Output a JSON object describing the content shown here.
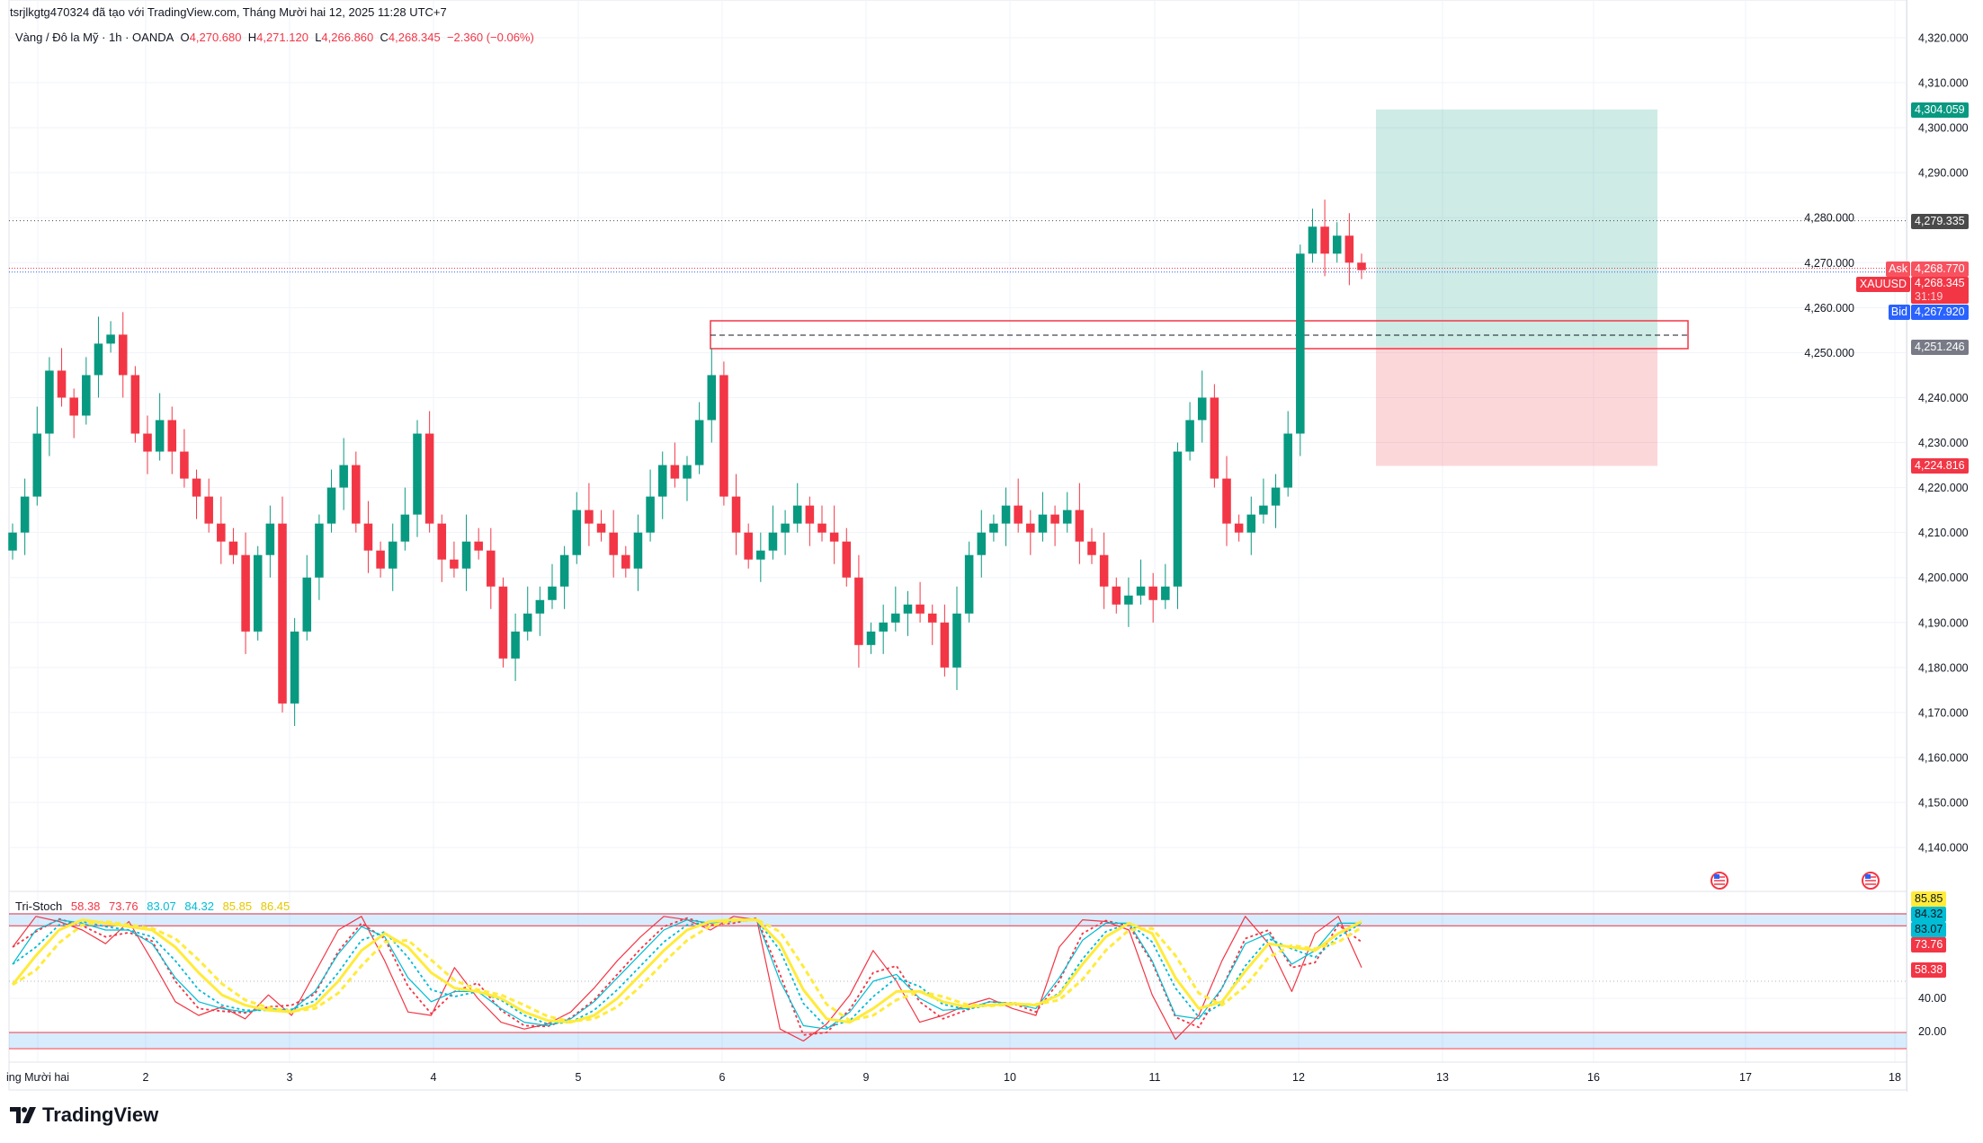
{
  "header": {
    "attribution": "tsrjlkgtg470324 đã tạo với TradingView.com, Tháng Mười hai 12, 2025 11:28 UTC+7",
    "symbol_desc": "Vàng / Đô la Mỹ · 1h · OANDA",
    "o_label": "O",
    "o": "4,270.680",
    "h_label": "H",
    "h": "4,271.120",
    "l_label": "L",
    "l": "4,266.860",
    "c_label": "C",
    "c": "4,268.345",
    "change": "−2.360 (−0.06%)"
  },
  "colors": {
    "up": "#089981",
    "down": "#f23645",
    "bid": "#2962ff",
    "grid": "#f0f3fa",
    "stoch_fast": "#f23645",
    "stoch_mid": "#00bcd4",
    "stoch_slow": "#ffeb3b"
  },
  "price_axis": [
    "4,320.000",
    "4,310.000",
    "4,300.000",
    "4,290.000",
    "4,280.000",
    "4,270.000",
    "4,260.000",
    "4,250.000",
    "4,240.000",
    "4,230.000",
    "4,220.000",
    "4,210.000",
    "4,200.000",
    "4,190.000",
    "4,180.000",
    "4,170.000",
    "4,160.000",
    "4,150.000",
    "4,140.000"
  ],
  "price_tags": {
    "target": "4,304.059",
    "line": "4,279.335",
    "ask_label": "Ask",
    "ask": "4,268.770",
    "symbol": "XAUUSD",
    "last": "4,268.345",
    "countdown": "31:19",
    "bid_label": "Bid",
    "bid": "4,267.920",
    "entry": "4,251.246",
    "stop": "4,224.816"
  },
  "time_axis": [
    "ing Mười hai",
    "2",
    "3",
    "4",
    "5",
    "6",
    "9",
    "10",
    "11",
    "12",
    "13",
    "16",
    "17",
    "18"
  ],
  "stoch": {
    "name": "Tri-Stoch",
    "values": [
      "58.38",
      "73.76",
      "83.07",
      "84.32",
      "85.85",
      "86.45"
    ],
    "axis": [
      "40.00",
      "20.00"
    ],
    "tags": [
      "85.85",
      "84.32",
      "83.07",
      "73.76",
      "58.38"
    ]
  },
  "brand": "TradingView",
  "chart_data": {
    "type": "candlestick",
    "symbol": "XAUUSD",
    "timeframe": "1h",
    "ylim": [
      4140,
      4320
    ],
    "closes": [
      4210,
      4218,
      4232,
      4246,
      4240,
      4236,
      4245,
      4252,
      4254,
      4245,
      4232,
      4228,
      4235,
      4228,
      4222,
      4218,
      4212,
      4208,
      4205,
      4188,
      4205,
      4212,
      4172,
      4188,
      4200,
      4212,
      4220,
      4225,
      4212,
      4206,
      4202,
      4208,
      4214,
      4232,
      4212,
      4204,
      4202,
      4208,
      4206,
      4198,
      4182,
      4188,
      4192,
      4195,
      4198,
      4205,
      4215,
      4212,
      4210,
      4205,
      4202,
      4210,
      4218,
      4225,
      4222,
      4225,
      4235,
      4245,
      4218,
      4210,
      4204,
      4206,
      4210,
      4212,
      4216,
      4212,
      4210,
      4208,
      4200,
      4185,
      4188,
      4190,
      4192,
      4194,
      4192,
      4190,
      4180,
      4192,
      4205,
      4210,
      4212,
      4216,
      4212,
      4210,
      4214,
      4212,
      4215,
      4208,
      4205,
      4198,
      4194,
      4196,
      4198,
      4195,
      4198,
      4228,
      4235,
      4240,
      4222,
      4212,
      4210,
      4214,
      4216,
      4220,
      4232,
      4272,
      4278,
      4272,
      4276,
      4270,
      4268.345
    ],
    "position": {
      "target": 4304.059,
      "entry": 4251.246,
      "stop": 4224.816
    },
    "zone": {
      "top": 4256,
      "mid": 4253,
      "bottom": 4250
    },
    "hline": 4279.335,
    "ask": 4268.77,
    "bid": 4267.92,
    "stoch_fast": [
      70,
      88,
      85,
      80,
      72,
      85,
      62,
      38,
      30,
      35,
      28,
      42,
      30,
      55,
      80,
      88,
      62,
      32,
      30,
      58,
      40,
      26,
      22,
      25,
      32,
      46,
      62,
      76,
      88,
      86,
      80,
      88,
      86,
      22,
      15,
      25,
      42,
      68,
      50,
      26,
      30,
      36,
      40,
      34,
      30,
      70,
      86,
      85,
      80,
      42,
      16,
      30,
      62,
      88,
      72,
      44,
      78,
      88,
      58
    ],
    "stoch_mid": [
      60,
      80,
      86,
      84,
      80,
      80,
      72,
      52,
      38,
      34,
      32,
      34,
      33,
      44,
      66,
      82,
      76,
      52,
      38,
      44,
      44,
      34,
      26,
      24,
      28,
      38,
      52,
      66,
      80,
      86,
      84,
      86,
      86,
      50,
      24,
      22,
      32,
      50,
      54,
      40,
      33,
      34,
      38,
      37,
      34,
      52,
      74,
      84,
      84,
      62,
      30,
      28,
      46,
      72,
      78,
      60,
      68,
      84,
      84
    ],
    "stoch_slow": [
      48,
      65,
      80,
      86,
      84,
      82,
      80,
      70,
      55,
      42,
      36,
      33,
      32,
      36,
      50,
      68,
      78,
      70,
      55,
      46,
      44,
      40,
      32,
      27,
      26,
      30,
      40,
      54,
      68,
      80,
      85,
      86,
      86,
      72,
      45,
      28,
      26,
      34,
      44,
      44,
      38,
      35,
      36,
      37,
      36,
      42,
      60,
      76,
      84,
      78,
      52,
      34,
      38,
      56,
      72,
      70,
      68,
      78,
      85
    ]
  }
}
